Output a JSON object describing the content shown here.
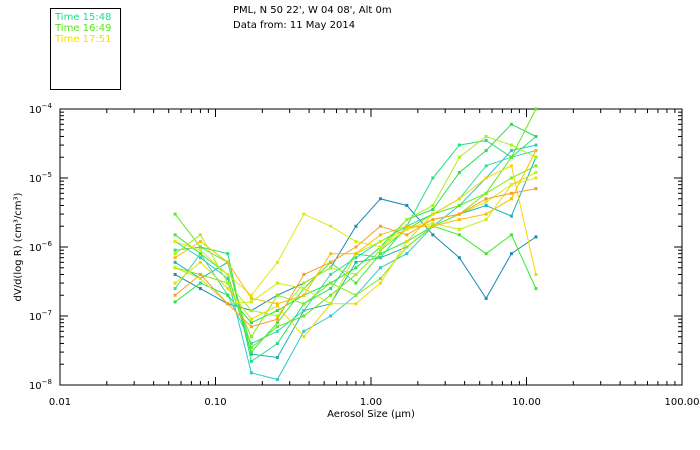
{
  "header": {
    "line1": "PML, N 50 22', W 04 08', Alt 0m",
    "line2": "Data from: 11 May 2014"
  },
  "legend": [
    {
      "label": "Time 15:48",
      "color": "#1fe08c"
    },
    {
      "label": "Time 16:49",
      "color": "#58e61a"
    },
    {
      "label": "Time 17:51",
      "color": "#f0e000"
    }
  ],
  "chart_data": {
    "type": "line",
    "xlabel": "Aerosol Size (μm)",
    "ylabel": "dV/d(log R) (cm³/cm³)",
    "x_scale": "log",
    "y_scale": "log",
    "xlim": [
      0.01,
      100
    ],
    "ylim": [
      1e-08,
      0.0001
    ],
    "x_ticks": [
      {
        "value": 0.01,
        "label": "0.01"
      },
      {
        "value": 0.1,
        "label": "0.10"
      },
      {
        "value": 1,
        "label": "1.00"
      },
      {
        "value": 10,
        "label": "10.00"
      },
      {
        "value": 100,
        "label": "100.00"
      }
    ],
    "y_ticks": [
      {
        "value": 1e-08,
        "base": "10",
        "exp": "−8"
      },
      {
        "value": 1e-07,
        "base": "10",
        "exp": "−7"
      },
      {
        "value": 1e-06,
        "base": "10",
        "exp": "−6"
      },
      {
        "value": 1e-05,
        "base": "10",
        "exp": "−5"
      },
      {
        "value": 0.0001,
        "base": "10",
        "exp": "−4"
      }
    ],
    "grid": false,
    "x": [
      0.055,
      0.08,
      0.12,
      0.17,
      0.25,
      0.37,
      0.55,
      0.8,
      1.15,
      1.7,
      2.5,
      3.7,
      5.5,
      8.0,
      11.5
    ],
    "series": [
      {
        "color": "#1a8cb4",
        "values": [
          4e-07,
          2.5e-07,
          1.5e-07,
          1.2e-07,
          2e-07,
          3e-07,
          5e-07,
          2e-06,
          5e-06,
          4e-06,
          1.5e-06,
          7e-07,
          1.8e-07,
          8e-07,
          1.4e-06
        ]
      },
      {
        "color": "#20b0b8",
        "values": [
          6e-07,
          3.5e-07,
          6e-07,
          2.8e-08,
          2.5e-08,
          1.2e-07,
          1.5e-07,
          6e-07,
          7e-07,
          1e-06,
          2e-06,
          3e-06,
          4e-06,
          2.8e-06,
          2e-05
        ]
      },
      {
        "color": "#30c8c8",
        "values": [
          1.2e-06,
          7e-07,
          3.5e-07,
          1.5e-08,
          1.2e-08,
          6e-08,
          1e-07,
          2e-07,
          5e-07,
          8e-07,
          2e-06,
          4e-06,
          1e-05,
          2.5e-05,
          3e-05
        ]
      },
      {
        "color": "#38d8a8",
        "values": [
          2.5e-07,
          8e-07,
          2e-07,
          4e-08,
          6e-08,
          1.2e-07,
          4e-07,
          7e-07,
          1.2e-06,
          2e-06,
          3e-06,
          5e-06,
          1.5e-05,
          2e-05,
          2.5e-05
        ]
      },
      {
        "color": "#20e080",
        "values": [
          9e-07,
          1e-06,
          8e-07,
          2.2e-08,
          4e-08,
          1.5e-07,
          2.5e-07,
          8e-07,
          7e-07,
          2e-06,
          1e-05,
          3e-05,
          3.5e-05,
          2e-05,
          4e-05
        ]
      },
      {
        "color": "#28e050",
        "values": [
          1.6e-07,
          3e-07,
          2e-07,
          8e-08,
          1.2e-07,
          2e-07,
          3e-07,
          5e-07,
          1e-06,
          2.5e-06,
          3.5e-06,
          1.2e-05,
          2.5e-05,
          6e-05,
          4e-05
        ]
      },
      {
        "color": "#40e830",
        "values": [
          1.5e-06,
          8e-07,
          4e-07,
          3e-08,
          8e-08,
          2.5e-07,
          6e-07,
          3e-07,
          8e-07,
          1.2e-06,
          2e-06,
          1.5e-06,
          8e-07,
          1.5e-06,
          2.5e-07
        ]
      },
      {
        "color": "#60e820",
        "values": [
          3e-06,
          1e-06,
          6e-07,
          3.5e-08,
          7e-08,
          1e-07,
          2e-07,
          4e-07,
          9e-07,
          1.8e-06,
          3e-06,
          4e-06,
          6e-06,
          2e-05,
          0.0001
        ]
      },
      {
        "color": "#80ec18",
        "values": [
          5e-07,
          4e-07,
          3e-07,
          5e-08,
          2e-07,
          1.5e-07,
          3e-07,
          2e-07,
          3.5e-07,
          1e-06,
          2e-06,
          3e-06,
          6e-06,
          1e-05,
          1.5e-05
        ]
      },
      {
        "color": "#a8f020",
        "values": [
          8e-07,
          1.5e-06,
          3e-07,
          1.2e-07,
          1e-07,
          3e-07,
          5e-07,
          4e-07,
          9e-07,
          2.5e-06,
          4e-06,
          2e-05,
          4e-05,
          3e-05,
          2e-05
        ]
      },
      {
        "color": "#c8ec10",
        "values": [
          5e-07,
          3.5e-07,
          1.5e-07,
          1.6e-07,
          3e-07,
          2.5e-07,
          1.5e-07,
          8e-07,
          1.2e-06,
          1.8e-06,
          2.2e-06,
          1.8e-06,
          2.5e-06,
          8e-06,
          1.2e-05
        ]
      },
      {
        "color": "#e0e818",
        "values": [
          1.2e-06,
          9e-07,
          4e-07,
          2e-07,
          6e-07,
          3e-06,
          2e-06,
          1.2e-06,
          1e-06,
          1.8e-06,
          2.5e-06,
          3e-06,
          4.5e-06,
          8e-06,
          1e-05
        ]
      },
      {
        "color": "#f0d800",
        "values": [
          3e-07,
          6e-07,
          2.5e-07,
          9e-08,
          1.4e-07,
          5e-08,
          1.5e-07,
          1.5e-07,
          3e-07,
          1.2e-06,
          3e-06,
          5e-06,
          1e-05,
          1.5e-05,
          4e-07
        ]
      },
      {
        "color": "#f8c000",
        "values": [
          7e-07,
          1.2e-06,
          6e-07,
          1.8e-07,
          1.5e-07,
          2e-07,
          8e-07,
          8e-07,
          1.5e-06,
          2e-06,
          2e-06,
          2.5e-06,
          3e-06,
          5e-06,
          2.5e-05
        ]
      },
      {
        "color": "#f8a020",
        "values": [
          2e-07,
          4e-07,
          1.5e-07,
          7e-08,
          9e-08,
          4e-07,
          6e-07,
          1e-06,
          2e-06,
          1.5e-06,
          2.5e-06,
          3e-06,
          5e-06,
          6e-06,
          7e-06
        ]
      }
    ]
  }
}
